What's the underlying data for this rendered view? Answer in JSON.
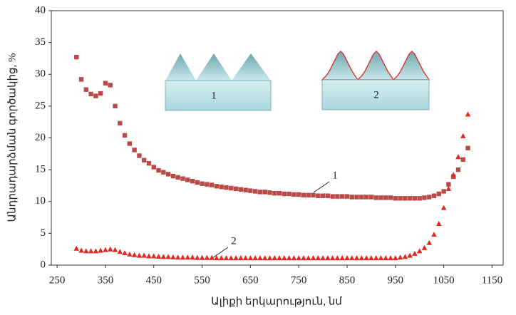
{
  "chart_data": {
    "type": "scatter",
    "xlabel": "Ալիքի երկարություն, նմ",
    "ylabel": "Անդրադարձման գործակից, %",
    "x": [
      290,
      300,
      310,
      320,
      330,
      340,
      350,
      360,
      370,
      380,
      390,
      400,
      410,
      420,
      430,
      440,
      450,
      460,
      470,
      480,
      490,
      500,
      510,
      520,
      530,
      540,
      550,
      560,
      570,
      580,
      590,
      600,
      610,
      620,
      630,
      640,
      650,
      660,
      670,
      680,
      690,
      700,
      710,
      720,
      730,
      740,
      750,
      760,
      770,
      780,
      790,
      800,
      810,
      820,
      830,
      840,
      850,
      860,
      870,
      880,
      890,
      900,
      910,
      920,
      930,
      940,
      950,
      960,
      970,
      980,
      990,
      1000,
      1010,
      1020,
      1030,
      1040,
      1050,
      1060,
      1070,
      1080,
      1090,
      1100
    ],
    "series": [
      {
        "name": "1",
        "color": "#b94a48",
        "marker": "square",
        "values": [
          32.7,
          29.2,
          27.6,
          26.9,
          26.6,
          27.0,
          28.6,
          28.3,
          25.0,
          22.3,
          20.4,
          19.1,
          18.1,
          17.2,
          16.5,
          16.0,
          15.4,
          14.9,
          14.6,
          14.3,
          14.0,
          13.8,
          13.6,
          13.4,
          13.2,
          13.0,
          12.8,
          12.7,
          12.6,
          12.4,
          12.3,
          12.2,
          12.1,
          12.0,
          11.9,
          11.8,
          11.7,
          11.6,
          11.5,
          11.5,
          11.4,
          11.3,
          11.3,
          11.2,
          11.2,
          11.1,
          11.1,
          11.0,
          11.0,
          11.0,
          10.9,
          10.9,
          10.9,
          10.8,
          10.8,
          10.8,
          10.8,
          10.7,
          10.7,
          10.7,
          10.7,
          10.7,
          10.6,
          10.6,
          10.6,
          10.6,
          10.5,
          10.5,
          10.5,
          10.5,
          10.5,
          10.5,
          10.6,
          10.7,
          10.9,
          11.2,
          11.6,
          12.7,
          13.9,
          15.0,
          16.6,
          18.4
        ]
      },
      {
        "name": "2",
        "color": "#e02a22",
        "marker": "triangle",
        "values": [
          2.6,
          2.3,
          2.2,
          2.2,
          2.2,
          2.3,
          2.4,
          2.5,
          2.4,
          2.1,
          1.9,
          1.7,
          1.6,
          1.5,
          1.5,
          1.4,
          1.4,
          1.35,
          1.3,
          1.3,
          1.25,
          1.2,
          1.2,
          1.2,
          1.2,
          1.15,
          1.15,
          1.15,
          1.15,
          1.1,
          1.1,
          1.1,
          1.1,
          1.1,
          1.1,
          1.1,
          1.1,
          1.1,
          1.1,
          1.1,
          1.1,
          1.1,
          1.1,
          1.1,
          1.1,
          1.1,
          1.1,
          1.1,
          1.1,
          1.1,
          1.1,
          1.1,
          1.1,
          1.1,
          1.1,
          1.1,
          1.1,
          1.1,
          1.1,
          1.1,
          1.1,
          1.1,
          1.1,
          1.1,
          1.1,
          1.1,
          1.1,
          1.2,
          1.3,
          1.5,
          1.8,
          2.2,
          2.7,
          3.5,
          4.8,
          6.5,
          9.0,
          12.0,
          14.2,
          17.0,
          20.3,
          23.7
        ]
      }
    ],
    "annotations": [
      "1",
      "2"
    ],
    "inset_labels": [
      "1",
      "2"
    ],
    "xlim": [
      238,
      1173
    ],
    "xticks": [
      250,
      350,
      450,
      550,
      650,
      750,
      850,
      950,
      1050,
      1150
    ],
    "ylim": [
      0,
      40
    ],
    "yticks": [
      0,
      5,
      10,
      15,
      20,
      25,
      30,
      35,
      40
    ],
    "grid": false
  }
}
